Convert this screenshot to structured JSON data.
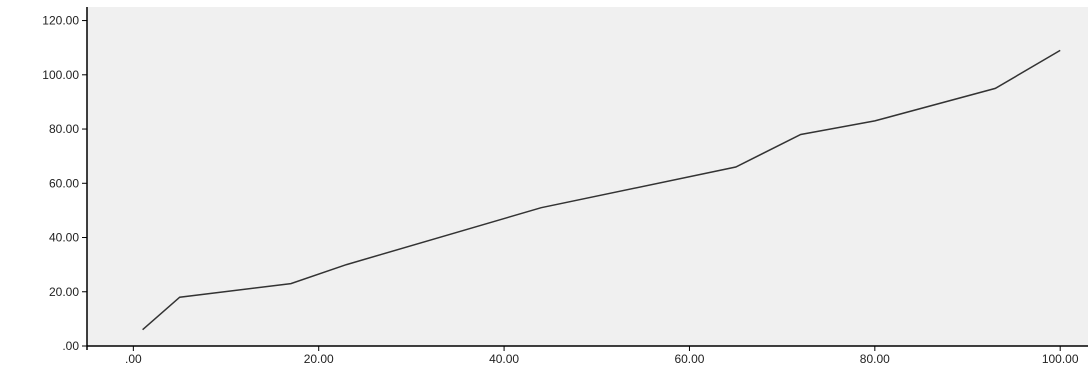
{
  "chart_data": {
    "type": "line",
    "title": "",
    "xlabel": "",
    "ylabel": "",
    "xlim": [
      -5,
      103
    ],
    "ylim": [
      0,
      125
    ],
    "x_ticks": [
      {
        "value": 0,
        "label": ".00"
      },
      {
        "value": 20,
        "label": "20.00"
      },
      {
        "value": 40,
        "label": "40.00"
      },
      {
        "value": 60,
        "label": "60.00"
      },
      {
        "value": 80,
        "label": "80.00"
      },
      {
        "value": 100,
        "label": "100.00"
      }
    ],
    "y_ticks": [
      {
        "value": 0,
        "label": ".00"
      },
      {
        "value": 20,
        "label": "20.00"
      },
      {
        "value": 40,
        "label": "40.00"
      },
      {
        "value": 60,
        "label": "60.00"
      },
      {
        "value": 80,
        "label": "80.00"
      },
      {
        "value": 100,
        "label": "100.00"
      },
      {
        "value": 120,
        "label": "120.00"
      }
    ],
    "grid": false,
    "legend": "none",
    "colors": {
      "plot_background": "#f0f0f0",
      "line": "#333333",
      "axis": "#000000"
    },
    "series": [
      {
        "x": [
          1,
          5,
          17,
          23,
          44,
          65,
          72,
          80,
          93,
          100
        ],
        "y": [
          6,
          18,
          23,
          30,
          51,
          66,
          78,
          83,
          95,
          109
        ]
      }
    ]
  }
}
